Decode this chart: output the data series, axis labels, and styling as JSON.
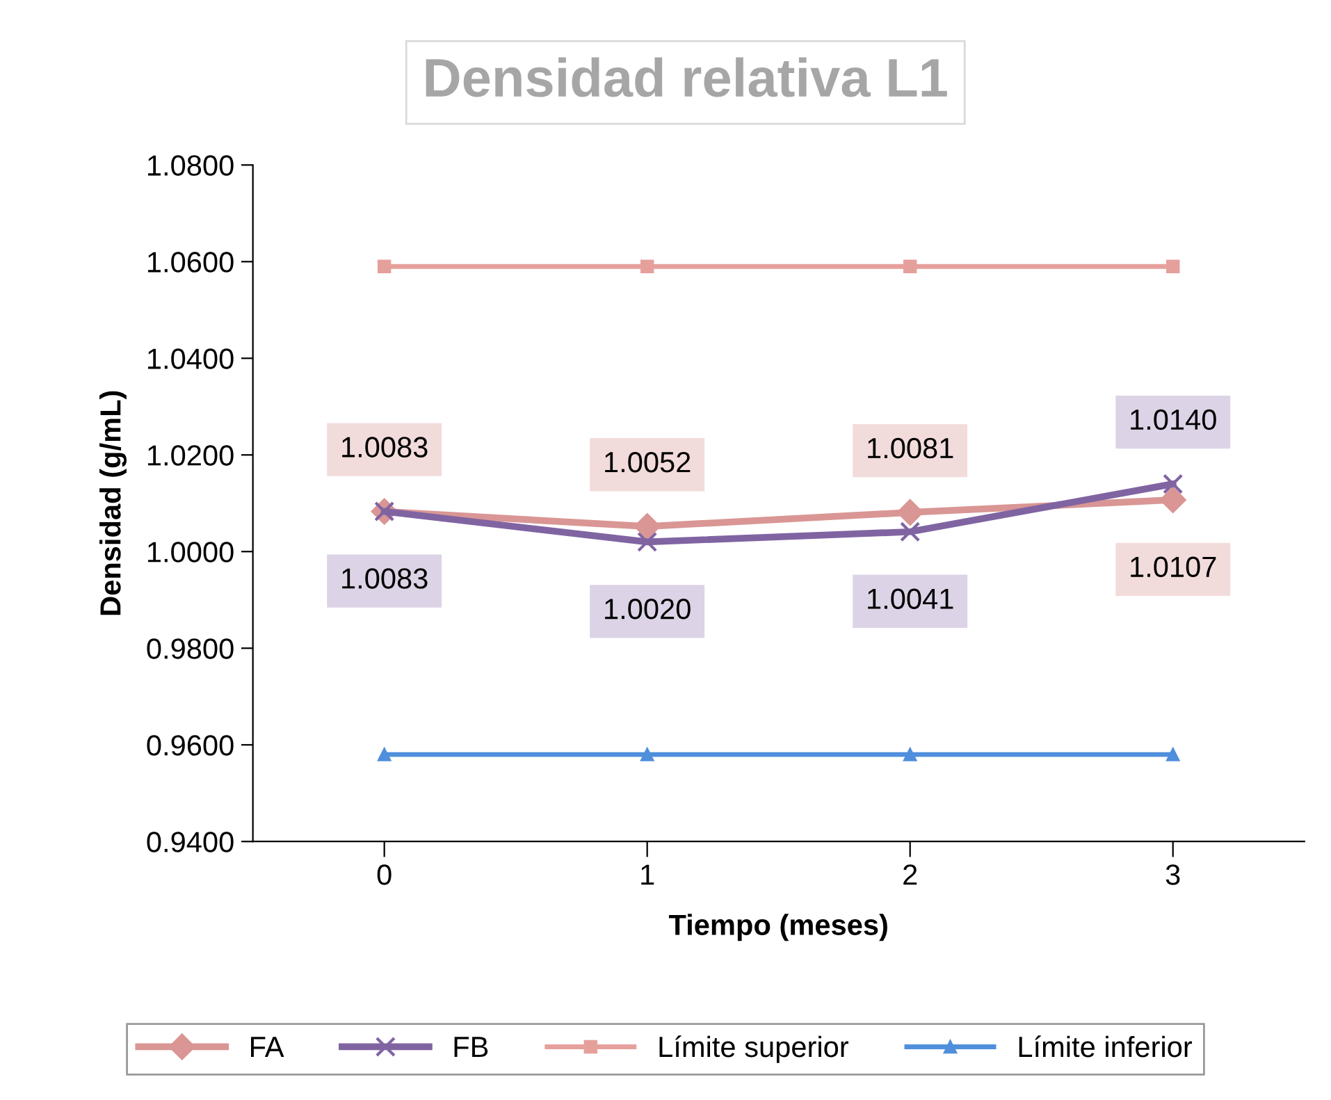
{
  "chart_data": {
    "type": "line",
    "title": "Densidad relativa L1",
    "xlabel": "Tiempo (meses)",
    "ylabel": "Densidad (g/mL)",
    "categories": [
      "0",
      "1",
      "2",
      "3"
    ],
    "series": [
      {
        "name": "FA",
        "color": "#d99694",
        "marker": "diamond",
        "values": [
          1.0083,
          1.0052,
          1.0081,
          1.0107
        ],
        "value_labels": [
          "1.0083",
          "1.0052",
          "1.0081",
          "1.0107"
        ]
      },
      {
        "name": "FB",
        "color": "#8064a2",
        "marker": "cross",
        "values": [
          1.0083,
          1.002,
          1.0041,
          1.014
        ],
        "value_labels": [
          "1.0083",
          "1.0020",
          "1.0041",
          "1.0140"
        ]
      },
      {
        "name": "Límite superior",
        "color": "#e6a09c",
        "marker": "square",
        "values": [
          1.059,
          1.059,
          1.059,
          1.059
        ]
      },
      {
        "name": "Límite inferior",
        "color": "#4f8fdc",
        "marker": "triangle",
        "values": [
          0.958,
          0.958,
          0.958,
          0.958
        ]
      }
    ],
    "ylim": [
      0.94,
      1.08
    ],
    "yticks": [
      {
        "value": 0.94,
        "label": "0.9400"
      },
      {
        "value": 0.96,
        "label": "0.9600"
      },
      {
        "value": 0.98,
        "label": "0.9800"
      },
      {
        "value": 1.0,
        "label": "1.0000"
      },
      {
        "value": 1.02,
        "label": "1.0200"
      },
      {
        "value": 1.04,
        "label": "1.0400"
      },
      {
        "value": 1.06,
        "label": "1.0600"
      },
      {
        "value": 1.08,
        "label": "1.0800"
      }
    ],
    "grid": false,
    "legend": "bottom"
  }
}
